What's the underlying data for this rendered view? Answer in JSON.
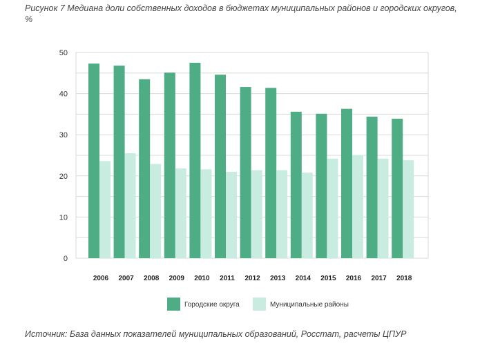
{
  "caption": "Рисунок 7 Медиана доли собственных доходов в бюджетах муниципальных районов  и городских округов, %",
  "source": "Источник: База данных показателей муниципальных образований, Росстат, расчеты ЦПУР",
  "colors": {
    "series1": "#4ead84",
    "series2": "#c9ece0",
    "grid": "#d9d9d9"
  },
  "chart_data": {
    "type": "bar",
    "title": "",
    "xlabel": "",
    "ylabel": "",
    "ylim": [
      0,
      50
    ],
    "yticks": [
      0,
      10,
      20,
      30,
      40,
      50
    ],
    "grid": true,
    "legend_position": "bottom",
    "categories": [
      "2006",
      "2007",
      "2008",
      "2009",
      "2010",
      "2011",
      "2012",
      "2013",
      "2014",
      "2015",
      "2016",
      "2017",
      "2018"
    ],
    "series": [
      {
        "name": "Городские округа",
        "values": [
          47.3,
          46.8,
          43.5,
          45.1,
          47.5,
          44.6,
          41.6,
          41.4,
          35.6,
          35.1,
          36.3,
          34.4,
          33.9
        ]
      },
      {
        "name": "Муниципальные районы",
        "values": [
          23.6,
          25.5,
          22.9,
          21.8,
          21.6,
          21.0,
          21.4,
          21.4,
          20.8,
          24.2,
          25.1,
          24.2,
          23.8
        ]
      }
    ]
  }
}
